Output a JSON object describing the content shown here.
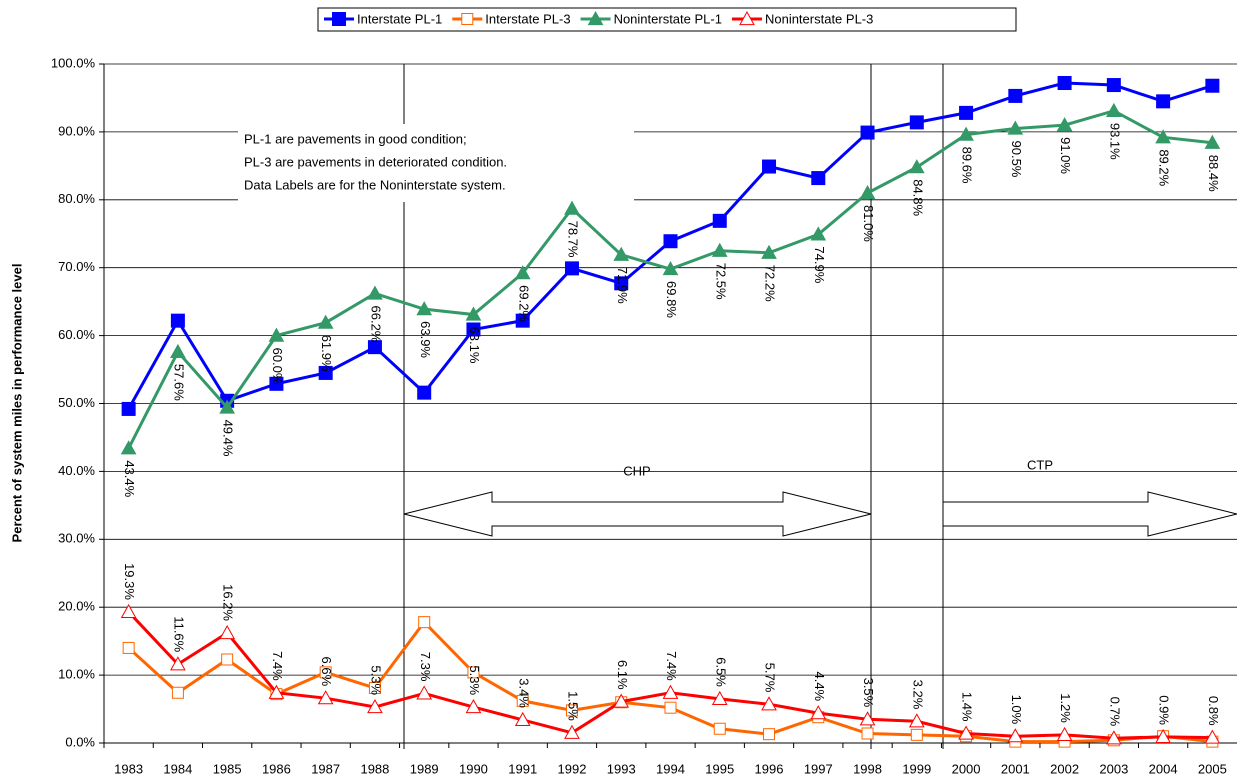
{
  "chart_data": {
    "type": "line",
    "y_label": "Percent of system miles in performance level",
    "categories": [
      "1983",
      "1984",
      "1985",
      "1986",
      "1987",
      "1988",
      "1989",
      "1990",
      "1991",
      "1992",
      "1993",
      "1994",
      "1995",
      "1996",
      "1997",
      "1998",
      "1999",
      "2000",
      "2001",
      "2002",
      "2003",
      "2004",
      "2005"
    ],
    "ylim": [
      0,
      100
    ],
    "yticks": [
      {
        "value": 0,
        "label": "0.0%"
      },
      {
        "value": 10,
        "label": "10.0%"
      },
      {
        "value": 20,
        "label": "20.0%"
      },
      {
        "value": 30,
        "label": "30.0%"
      },
      {
        "value": 40,
        "label": "40.0%"
      },
      {
        "value": 50,
        "label": "50.0%"
      },
      {
        "value": 60,
        "label": "60.0%"
      },
      {
        "value": 70,
        "label": "70.0%"
      },
      {
        "value": 80,
        "label": "80.0%"
      },
      {
        "value": 90,
        "label": "90.0%"
      },
      {
        "value": 100,
        "label": "100.0%"
      }
    ],
    "grid": true,
    "legend": "top",
    "note": [
      "PL-1 are pavements in good condition;",
      "PL-3 are pavements in deteriorated condition.",
      "Data Labels are for the Noninterstate system."
    ],
    "annotations": [
      "CHP",
      "CTP"
    ],
    "series": [
      {
        "name": "Interstate PL-1",
        "color": "#0000ff",
        "marker": "square",
        "values": [
          49.2,
          62.2,
          50.4,
          52.9,
          54.5,
          58.3,
          51.6,
          60.9,
          62.2,
          69.9,
          67.7,
          73.9,
          76.9,
          84.9,
          83.2,
          89.9,
          91.4,
          92.8,
          95.3,
          97.2,
          96.9,
          94.5,
          96.8
        ]
      },
      {
        "name": "Interstate PL-3",
        "color": "#ff6600",
        "marker": "square-open",
        "values": [
          14.0,
          7.4,
          12.3,
          7.2,
          10.4,
          8.1,
          17.8,
          10.4,
          6.2,
          4.8,
          6.0,
          5.2,
          2.1,
          1.3,
          3.8,
          1.4,
          1.2,
          1.0,
          0.2,
          0.2,
          0.4,
          1.0,
          0.2
        ]
      },
      {
        "name": "Noninterstate PL-1",
        "color": "#339966",
        "marker": "triangle",
        "values": [
          43.4,
          57.6,
          49.4,
          60.0,
          61.9,
          66.2,
          63.9,
          63.1,
          69.2,
          78.7,
          71.9,
          69.8,
          72.5,
          72.2,
          74.9,
          81.0,
          84.8,
          89.6,
          90.5,
          91.0,
          93.1,
          89.2,
          88.4
        ],
        "value_labels": [
          "43.4%",
          "57.6%",
          "49.4%",
          "60.0%",
          "61.9%",
          "66.2%",
          "63.9%",
          "63.1%",
          "69.2%",
          "78.7%",
          "71.9%",
          "69.8%",
          "72.5%",
          "72.2%",
          "74.9%",
          "81.0%",
          "84.8%",
          "89.6%",
          "90.5%",
          "91.0%",
          "93.1%",
          "89.2%",
          "88.4%"
        ]
      },
      {
        "name": "Noninterstate PL-3",
        "color": "#ff0000",
        "marker": "triangle-open",
        "values": [
          19.3,
          11.6,
          16.2,
          7.4,
          6.6,
          5.3,
          7.3,
          5.3,
          3.4,
          1.5,
          6.1,
          7.4,
          6.5,
          5.7,
          4.4,
          3.5,
          3.2,
          1.4,
          1.0,
          1.2,
          0.7,
          0.9,
          0.8
        ],
        "value_labels": [
          "19.3%",
          "11.6%",
          "16.2%",
          "7.4%",
          "6.6%",
          "5.3%",
          "7.3%",
          "5.3%",
          "3.4%",
          "1.5%",
          "6.1%",
          "7.4%",
          "6.5%",
          "5.7%",
          "4.4%",
          "3.5%",
          "3.2%",
          "1.4%",
          "1.0%",
          "1.2%",
          "0.7%",
          "0.9%",
          "0.8%"
        ]
      }
    ]
  }
}
